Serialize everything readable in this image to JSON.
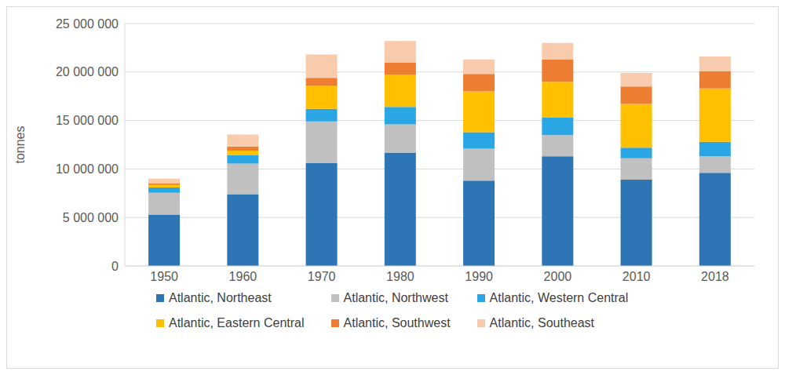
{
  "chart_data": {
    "type": "bar",
    "stacked": true,
    "y_label": "tonnes",
    "categories": [
      "1950",
      "1960",
      "1970",
      "1980",
      "1990",
      "2000",
      "2010",
      "2018"
    ],
    "series": [
      {
        "name": "Atlantic, Northeast",
        "color": "#2e75b6",
        "values": [
          5300000,
          7400000,
          10600000,
          11700000,
          8800000,
          11300000,
          8900000,
          9600000
        ]
      },
      {
        "name": "Atlantic, Northwest",
        "color": "#c0c0c0",
        "values": [
          2250000,
          3150000,
          4300000,
          2900000,
          3300000,
          2200000,
          2200000,
          1700000
        ]
      },
      {
        "name": "Atlantic, Western Central",
        "color": "#2aa6e4",
        "values": [
          550000,
          900000,
          1300000,
          1800000,
          1700000,
          1800000,
          1100000,
          1500000
        ]
      },
      {
        "name": "Atlantic, Eastern Central",
        "color": "#ffc000",
        "values": [
          250000,
          450000,
          2400000,
          3300000,
          4200000,
          3700000,
          4500000,
          5500000
        ]
      },
      {
        "name": "Atlantic, Southwest",
        "color": "#ed7d31",
        "values": [
          150000,
          400000,
          800000,
          1300000,
          1800000,
          2300000,
          1800000,
          1800000
        ]
      },
      {
        "name": "Atlantic, Southeast",
        "color": "#f8cbad",
        "values": [
          500000,
          1250000,
          2400000,
          2200000,
          1500000,
          1700000,
          1400000,
          1500000
        ]
      }
    ],
    "ylim": [
      0,
      25000000
    ],
    "yticks": [
      0,
      {
        "value": 5000000,
        "label": "5 000 000"
      },
      {
        "value": 10000000,
        "label": "10 000 000"
      },
      {
        "value": 15000000,
        "label": "15 000 000"
      },
      {
        "value": 20000000,
        "label": "20 000 000"
      },
      {
        "value": 25000000,
        "label": "25 000 000"
      }
    ],
    "grid": true,
    "legend": "bottom"
  }
}
